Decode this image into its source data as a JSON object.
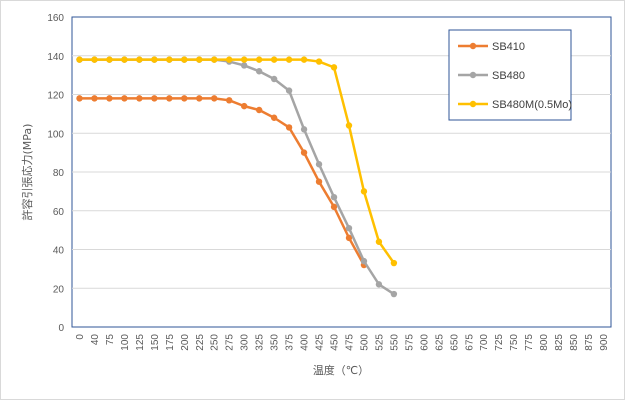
{
  "chart_data": {
    "type": "line",
    "title": "",
    "xlabel": "温度（℃）",
    "ylabel": "許容引張応力(MPa)",
    "categories": [
      "0",
      "40",
      "75",
      "100",
      "125",
      "150",
      "175",
      "200",
      "225",
      "250",
      "275",
      "300",
      "325",
      "350",
      "375",
      "400",
      "425",
      "450",
      "475",
      "500",
      "525",
      "550",
      "575",
      "600",
      "625",
      "650",
      "675",
      "700",
      "725",
      "750",
      "775",
      "800",
      "825",
      "850",
      "875",
      "900"
    ],
    "ylim": [
      0,
      160
    ],
    "yticks": [
      0,
      20,
      40,
      60,
      80,
      100,
      120,
      140,
      160
    ],
    "grid": "horizontal",
    "legend": "top-right",
    "series": [
      {
        "name": "SB410",
        "color": "#ED7D31",
        "values": [
          118,
          118,
          118,
          118,
          118,
          118,
          118,
          118,
          118,
          118,
          117,
          114,
          112,
          108,
          103,
          90,
          75,
          62,
          46,
          32,
          null,
          null,
          null,
          null,
          null,
          null,
          null,
          null,
          null,
          null,
          null,
          null,
          null,
          null,
          null,
          null
        ]
      },
      {
        "name": "SB480",
        "color": "#A5A5A5",
        "values": [
          138,
          138,
          138,
          138,
          138,
          138,
          138,
          138,
          138,
          138,
          137,
          135,
          132,
          128,
          122,
          102,
          84,
          67,
          51,
          34,
          22,
          17,
          null,
          null,
          null,
          null,
          null,
          null,
          null,
          null,
          null,
          null,
          null,
          null,
          null,
          null
        ]
      },
      {
        "name": "SB480M(0.5Mo)",
        "color": "#FFC000",
        "values": [
          138,
          138,
          138,
          138,
          138,
          138,
          138,
          138,
          138,
          138,
          138,
          138,
          138,
          138,
          138,
          138,
          137,
          134,
          104,
          70,
          44,
          33,
          null,
          null,
          null,
          null,
          null,
          null,
          null,
          null,
          null,
          null,
          null,
          null,
          null,
          null
        ]
      }
    ]
  }
}
